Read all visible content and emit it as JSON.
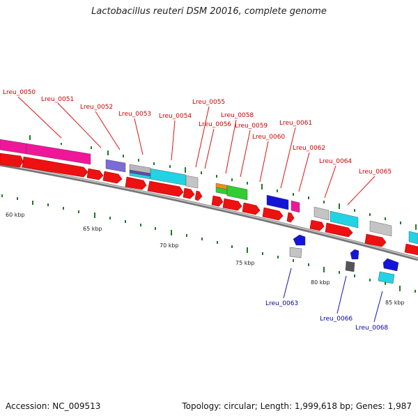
{
  "title": "Lactobacillus reuteri DSM 20016, complete genome",
  "footer": {
    "accession": "Accession: NC_009513",
    "summary": "Topology: circular; Length: 1,999,618 bp; Genes: 1,987"
  },
  "scale_labels": [
    "60 kbp",
    "65 kbp",
    "70 kbp",
    "75 kbp",
    "80 kbp",
    "85 kbp"
  ],
  "colors": {
    "red": "#ee0000",
    "magenta": "#f0169a",
    "cyan": "#22d3e3",
    "blue": "#1515d8",
    "green": "#33cc33",
    "gray": "#bbbbbb",
    "purple": "#7c6ad8",
    "forward_label": "#cc0000",
    "reverse_label": "#0000aa",
    "backbone": "#888888",
    "tick": "#227722"
  },
  "gene_labels_top": [
    "Lreu_0050",
    "Lreu_0051",
    "Lreu_0052",
    "Lreu_0053",
    "Lreu_0054",
    "Lreu_0055",
    "Lreu_0056",
    "Lreu_0058",
    "Lreu_0059",
    "Lreu_0060",
    "Lreu_0061",
    "Lreu_0062",
    "Lreu_0064",
    "Lreu_0065"
  ],
  "gene_labels_bottom": [
    "Lreu_0063",
    "Lreu_0066",
    "Lreu_0068"
  ]
}
